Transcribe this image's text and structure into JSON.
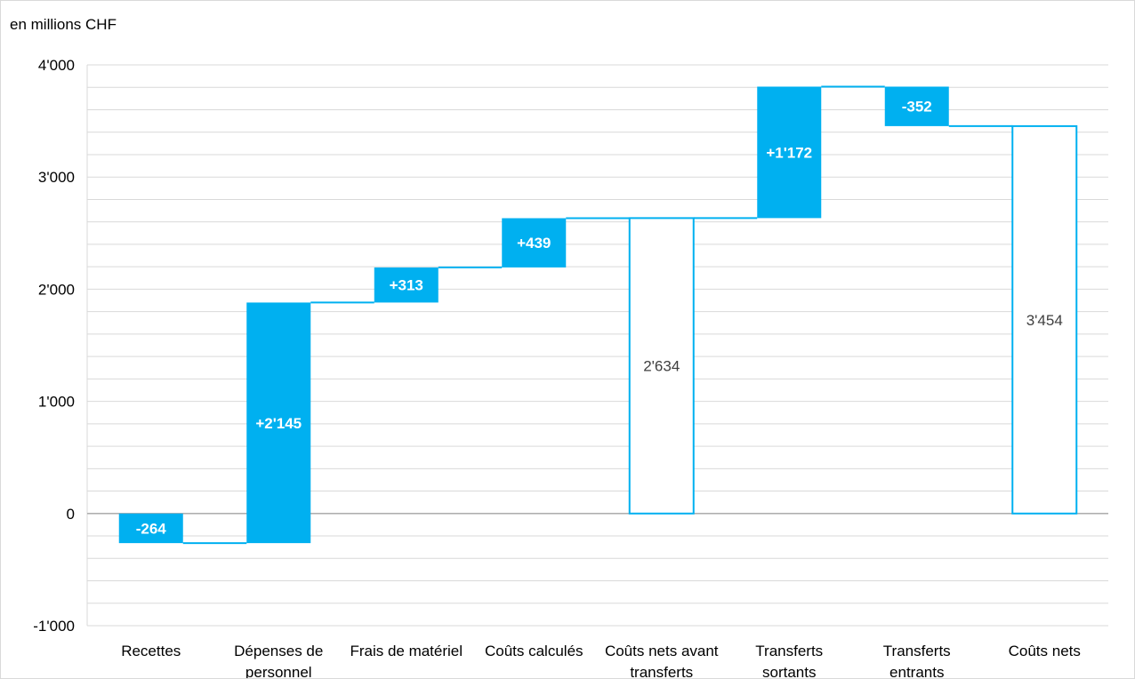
{
  "chart_data": {
    "type": "waterfall",
    "unit_label": "en millions CHF",
    "categories": [
      [
        "Recettes"
      ],
      [
        "Dépenses de",
        "personnel"
      ],
      [
        "Frais de matériel"
      ],
      [
        "Coûts calculés"
      ],
      [
        "Coûts nets avant",
        "transferts"
      ],
      [
        "Transferts",
        "sortants"
      ],
      [
        "Transferts",
        "entrants"
      ],
      [
        "Coûts nets"
      ]
    ],
    "bars": [
      {
        "kind": "delta",
        "start": 0,
        "end": -264,
        "label": "-264"
      },
      {
        "kind": "delta",
        "start": -264,
        "end": 1881,
        "label": "+2'145"
      },
      {
        "kind": "delta",
        "start": 1881,
        "end": 2194,
        "label": "+313"
      },
      {
        "kind": "delta",
        "start": 2194,
        "end": 2633,
        "label": "+439"
      },
      {
        "kind": "total",
        "start": 0,
        "end": 2634,
        "label": "2'634"
      },
      {
        "kind": "delta",
        "start": 2634,
        "end": 3806,
        "label": "+1'172"
      },
      {
        "kind": "delta",
        "start": 3806,
        "end": 3454,
        "label": "-352"
      },
      {
        "kind": "total",
        "start": 0,
        "end": 3454,
        "label": "3'454"
      }
    ],
    "yticks": [
      {
        "value": -1000,
        "label": "-1'000"
      },
      {
        "value": 0,
        "label": "0"
      },
      {
        "value": 1000,
        "label": "1'000"
      },
      {
        "value": 2000,
        "label": "2'000"
      },
      {
        "value": 3000,
        "label": "3'000"
      },
      {
        "value": 4000,
        "label": "4'000"
      }
    ],
    "ylim": [
      -1000,
      4000
    ],
    "minor_grid_step": 200,
    "colors": {
      "fill": "#00b0f0",
      "outline": "#00b0f0",
      "total_fill": "#ffffff",
      "delta_label": "#ffffff",
      "total_label": "#404040",
      "grid": "#d9d9d9",
      "zero_line": "#a6a6a6"
    }
  }
}
